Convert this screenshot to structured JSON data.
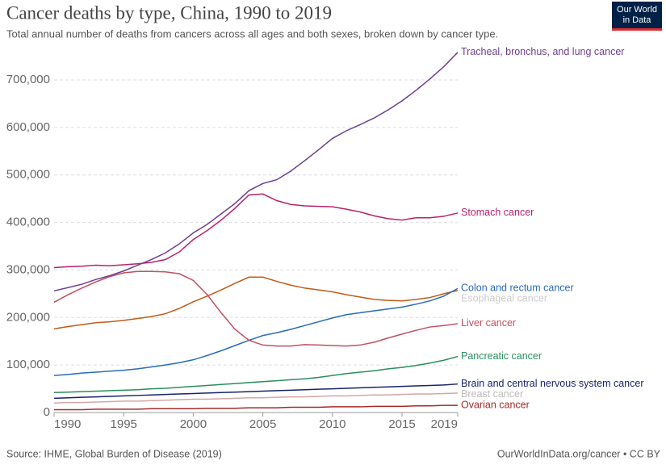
{
  "chart_data": {
    "type": "line",
    "title": "Cancer deaths by type, China, 1990 to 2019",
    "subtitle": "Total annual number of deaths from cancers across all ages and both sexes, broken down by cancer type.",
    "source": "Source: IHME, Global Burden of Disease (2019)",
    "credit": "OurWorldInData.org/cancer • CC BY",
    "logo": [
      "Our World",
      "in Data"
    ],
    "x": [
      1990,
      1991,
      1992,
      1993,
      1994,
      1995,
      1996,
      1997,
      1998,
      1999,
      2000,
      2001,
      2002,
      2003,
      2004,
      2005,
      2006,
      2007,
      2008,
      2009,
      2010,
      2011,
      2012,
      2013,
      2014,
      2015,
      2016,
      2017,
      2018,
      2019
    ],
    "xlim": [
      1990,
      2019
    ],
    "xticks": [
      1990,
      1995,
      2000,
      2005,
      2010,
      2015,
      2019
    ],
    "ylim": [
      0,
      760000
    ],
    "yticks": [
      0,
      {
        "value": 100000,
        "label": "100,000"
      },
      {
        "value": 200000,
        "label": "200,000"
      },
      {
        "value": 300000,
        "label": "300,000"
      },
      {
        "value": 400000,
        "label": "400,000"
      },
      {
        "value": 500000,
        "label": "500,000"
      },
      {
        "value": 600000,
        "label": "600,000"
      },
      {
        "value": 700000,
        "label": "700,000"
      }
    ],
    "grid": true,
    "series": [
      {
        "name": "Tracheal, bronchus, and lung cancer",
        "color": "#6d3e91",
        "values": [
          256000,
          263000,
          270000,
          280000,
          288000,
          298000,
          310000,
          322000,
          336000,
          355000,
          378000,
          396000,
          418000,
          440000,
          467000,
          482000,
          490000,
          508000,
          530000,
          553000,
          577000,
          593000,
          606000,
          620000,
          637000,
          656000,
          678000,
          702000,
          728000,
          758000
        ]
      },
      {
        "name": "Stomach cancer",
        "color": "#b8226b",
        "values": [
          305000,
          307000,
          308000,
          310000,
          309000,
          311000,
          313000,
          316000,
          322000,
          338000,
          364000,
          383000,
          405000,
          430000,
          458000,
          460000,
          446000,
          438000,
          435000,
          434000,
          433000,
          428000,
          422000,
          414000,
          408000,
          405000,
          410000,
          410000,
          413000,
          420000
        ]
      },
      {
        "name": "Esophageal cancer",
        "color": "#c15a16",
        "label_color": "#cccccc",
        "values": [
          176000,
          181000,
          185000,
          189000,
          191000,
          194000,
          198000,
          202000,
          208000,
          219000,
          233000,
          245000,
          258000,
          272000,
          285000,
          285000,
          276000,
          268000,
          262000,
          258000,
          254000,
          248000,
          243000,
          238000,
          236000,
          235000,
          238000,
          242000,
          250000,
          257000
        ]
      },
      {
        "name": "Colon and rectum cancer",
        "color": "#286bbb",
        "values": [
          78000,
          80000,
          83000,
          85000,
          87000,
          89000,
          92000,
          96000,
          100000,
          105000,
          111000,
          120000,
          130000,
          141000,
          152000,
          162000,
          168000,
          175000,
          183000,
          191000,
          199000,
          206000,
          210000,
          214000,
          218000,
          222000,
          228000,
          235000,
          245000,
          261000
        ]
      },
      {
        "name": "Liver cancer",
        "color": "#c05060",
        "values": [
          232000,
          248000,
          262000,
          275000,
          286000,
          294000,
          297000,
          297000,
          296000,
          292000,
          278000,
          248000,
          210000,
          175000,
          152000,
          142000,
          140000,
          140000,
          143000,
          142000,
          141000,
          140000,
          142000,
          148000,
          157000,
          165000,
          173000,
          180000,
          183000,
          187000
        ]
      },
      {
        "name": "Pancreatic cancer",
        "color": "#2a8d5d",
        "values": [
          42000,
          43000,
          44000,
          45000,
          46000,
          47000,
          48000,
          50000,
          51000,
          53000,
          55000,
          57000,
          59000,
          61000,
          63000,
          65000,
          67000,
          69000,
          71000,
          74000,
          78000,
          82000,
          85000,
          88000,
          92000,
          95000,
          99000,
          104000,
          110000,
          118000
        ]
      },
      {
        "name": "Brain and central nervous system cancer",
        "color": "#18236e",
        "values": [
          30000,
          31000,
          32000,
          33000,
          34000,
          35000,
          36000,
          37000,
          38000,
          39000,
          40000,
          41000,
          42000,
          43000,
          44000,
          45000,
          46000,
          47000,
          48000,
          49000,
          50000,
          51000,
          52000,
          53000,
          54000,
          55000,
          56000,
          57000,
          58000,
          60000
        ]
      },
      {
        "name": "Breast cancer",
        "color": "#d4a6a6",
        "label_color": "#bbbbbb",
        "values": [
          20000,
          21000,
          21000,
          22000,
          23000,
          24000,
          24000,
          25000,
          26000,
          27000,
          28000,
          28000,
          29000,
          30000,
          31000,
          31000,
          32000,
          33000,
          33000,
          34000,
          35000,
          35000,
          36000,
          37000,
          37000,
          38000,
          39000,
          39000,
          40000,
          41000
        ]
      },
      {
        "name": "Ovarian cancer",
        "color": "#a52a2a",
        "values": [
          6000,
          6000,
          6000,
          7000,
          7000,
          7000,
          7000,
          8000,
          8000,
          8000,
          8000,
          9000,
          9000,
          9000,
          10000,
          10000,
          10000,
          11000,
          11000,
          11000,
          12000,
          12000,
          12000,
          13000,
          13000,
          13000,
          14000,
          14000,
          15000,
          15000
        ]
      }
    ]
  }
}
